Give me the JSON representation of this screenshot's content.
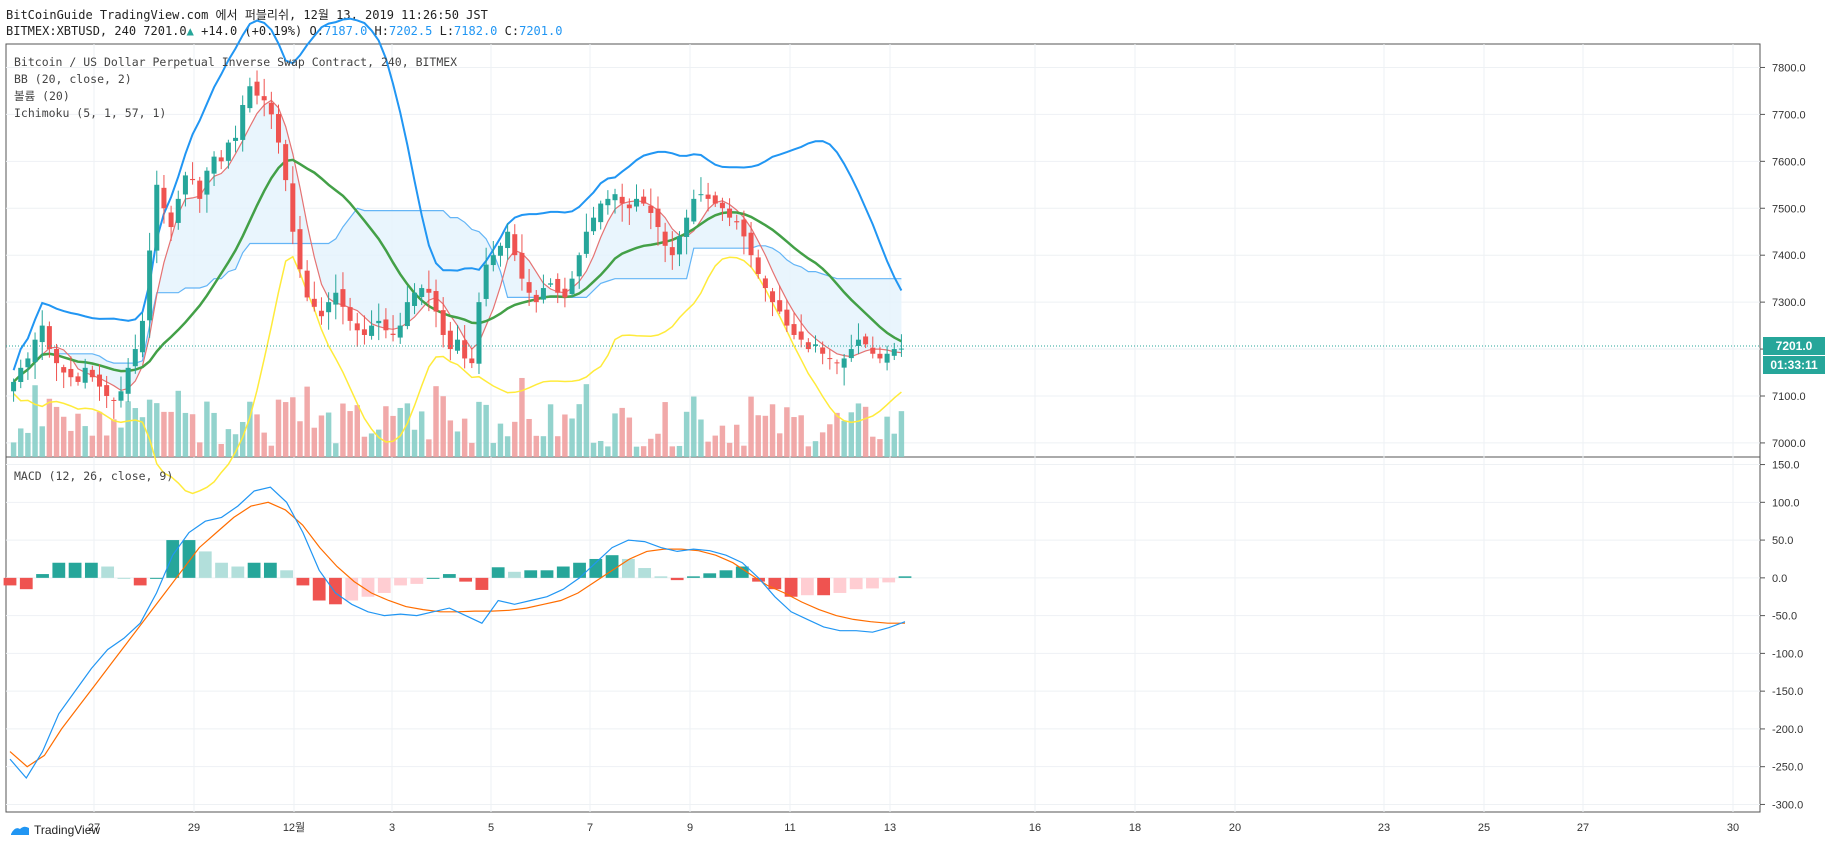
{
  "header": {
    "publish_line": "BitCoinGuide TradingView.com 에서 퍼블리쉬, 12월 13, 2019 11:26:50 JST",
    "symbol": "BITMEX:XBTUSD, 240",
    "last": "7201.0",
    "change": "+14.0 (+0.19%)",
    "o_label": "O:",
    "o_val": "7187.0",
    "h_label": "H:",
    "h_val": "7202.5",
    "l_label": "L:",
    "l_val": "7182.0",
    "c_label": "C:",
    "c_val": "7201.0"
  },
  "main_pane": {
    "title": "Bitcoin / US Dollar Perpetual Inverse Swap Contract, 240, BITMEX",
    "indicators": [
      "BB (20, close, 2)",
      "볼륨 (20)",
      "Ichimoku (5, 1, 57, 1)"
    ],
    "price_label": "7201.0",
    "countdown_label": "01:33:11"
  },
  "macd_pane": {
    "title": "MACD (12, 26, close, 9)"
  },
  "footer": {
    "brand": "TradingView"
  },
  "colors": {
    "up": "#26a69a",
    "down": "#ef5350",
    "bb_upper": "#2196f3",
    "bb_mid": "#43a047",
    "ichimoku_lagging": "#ffeb3b",
    "macd": "#2196f3",
    "signal": "#ff6d00",
    "price_line": "#26a69a",
    "kumo_bull": "#bbdefb",
    "kumo_bear": "#ffcdd2"
  },
  "chart_data": [
    {
      "type": "candlestick",
      "y_ticks": [
        "7800.0",
        "7700.0",
        "7600.0",
        "7500.0",
        "7400.0",
        "7300.0",
        "7200.0",
        "7100.0",
        "7000.0"
      ],
      "ylim": [
        6970,
        7850
      ],
      "x_ticks": [
        "27",
        "29",
        "12월",
        "3",
        "5",
        "7",
        "9",
        "11",
        "13",
        "16",
        "18",
        "20",
        "23",
        "25",
        "27",
        "30"
      ],
      "closes": [
        7130,
        7160,
        7180,
        7220,
        7250,
        7200,
        7170,
        7150,
        7140,
        7130,
        7160,
        7140,
        7120,
        7100,
        7090,
        7110,
        7160,
        7200,
        7260,
        7410,
        7550,
        7500,
        7460,
        7520,
        7570,
        7560,
        7520,
        7580,
        7610,
        7600,
        7640,
        7650,
        7720,
        7760,
        7740,
        7730,
        7700,
        7640,
        7560,
        7450,
        7370,
        7310,
        7290,
        7270,
        7300,
        7320,
        7290,
        7260,
        7240,
        7230,
        7250,
        7260,
        7240,
        7230,
        7250,
        7300,
        7320,
        7330,
        7320,
        7280,
        7230,
        7200,
        7220,
        7180,
        7170,
        7300,
        7380,
        7400,
        7420,
        7450,
        7400,
        7350,
        7320,
        7300,
        7330,
        7340,
        7320,
        7310,
        7350,
        7400,
        7450,
        7480,
        7510,
        7520,
        7530,
        7510,
        7500,
        7520,
        7510,
        7490,
        7460,
        7420,
        7400,
        7440,
        7480,
        7520,
        7530,
        7520,
        7510,
        7500,
        7480,
        7470,
        7440,
        7400,
        7360,
        7330,
        7300,
        7280,
        7250,
        7230,
        7220,
        7200,
        7210,
        7190,
        7180,
        7170,
        7180,
        7200,
        7220,
        7210,
        7190,
        7180,
        7190,
        7200,
        7201
      ]
    },
    {
      "type": "bar",
      "name": "volume",
      "note": "relative units, no axis"
    },
    {
      "type": "line",
      "name": "MACD",
      "y_ticks": [
        "150.0",
        "100.0",
        "50.0",
        "0.0",
        "-50.0",
        "-100.0",
        "-150.0",
        "-200.0",
        "-250.0",
        "-300.0"
      ],
      "ylim": [
        -310,
        160
      ],
      "macd_samples": [
        -240,
        -265,
        -230,
        -180,
        -150,
        -120,
        -95,
        -80,
        -60,
        -20,
        30,
        60,
        75,
        80,
        95,
        115,
        120,
        100,
        60,
        10,
        -20,
        -35,
        -45,
        -50,
        -48,
        -50,
        -45,
        -40,
        -50,
        -60,
        -30,
        -35,
        -30,
        -25,
        -15,
        0,
        20,
        40,
        50,
        48,
        40,
        35,
        38,
        36,
        30,
        20,
        0,
        -25,
        -45,
        -55,
        -65,
        -70,
        -70,
        -72,
        -66,
        -58
      ],
      "signal_samples": [
        -230,
        -250,
        -235,
        -200,
        -170,
        -140,
        -110,
        -80,
        -50,
        -20,
        10,
        40,
        60,
        80,
        95,
        100,
        90,
        70,
        40,
        15,
        -5,
        -20,
        -30,
        -38,
        -42,
        -45,
        -45,
        -44,
        -44,
        -43,
        -40,
        -35,
        -30,
        -20,
        -5,
        10,
        25,
        35,
        38,
        38,
        36,
        30,
        20,
        5,
        -10,
        -20,
        -32,
        -42,
        -50,
        -55,
        -58,
        -60,
        -60
      ]
    }
  ]
}
